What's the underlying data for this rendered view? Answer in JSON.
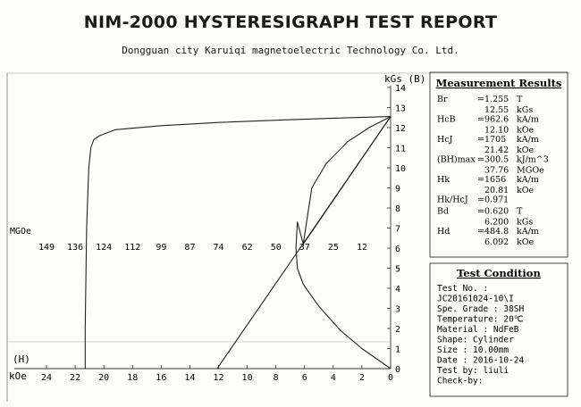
{
  "report": {
    "title": "NIM-2000 HYSTERESIGRAPH TEST REPORT",
    "company": "Dongguan city Karuiqi magnetoelectric Technology Co. Ltd."
  },
  "chart_data": {
    "type": "line",
    "y_axis": {
      "label": "kGs (B)",
      "min": 0,
      "max": 14,
      "ticks": [
        "0",
        "1",
        "2",
        "3",
        "4",
        "5",
        "6",
        "7",
        "8",
        "9",
        "10",
        "11",
        "12",
        "13",
        "14"
      ]
    },
    "x_axis": {
      "label": "kOe",
      "min": -24,
      "max": 0,
      "ticks": [
        "24",
        "22",
        "20",
        "18",
        "16",
        "14",
        "12",
        "10",
        "8",
        "6",
        "4",
        "2",
        "0"
      ]
    },
    "h_axis_label": "(H)",
    "energy_axis": {
      "label": "MGOe",
      "ticks": [
        "149",
        "136",
        "124",
        "112",
        "99",
        "87",
        "74",
        "62",
        "50",
        "37",
        "25",
        "12"
      ]
    },
    "series": [
      {
        "kind": "demagnetization-curve",
        "x": [
          0,
          -4,
          -8,
          -12,
          -16,
          -19.2,
          -20.3,
          -20.7,
          -20.9,
          -21.05,
          -21.2,
          -21.3,
          -21.3
        ],
        "y": [
          12.55,
          12.47,
          12.37,
          12.26,
          12.1,
          11.9,
          11.6,
          11.4,
          11.0,
          10.0,
          7.0,
          2.0,
          0
        ]
      },
      {
        "kind": "bh-product-curve",
        "x": [
          0,
          -1.5,
          -3,
          -4.5,
          -5.5,
          -6.09,
          -6.5,
          -6.6,
          -6.5,
          -6.09,
          -5,
          -3.5,
          -2,
          -0.8,
          0
        ],
        "y": [
          12.55,
          12.0,
          11.3,
          10.2,
          9.0,
          6.2,
          7.3,
          6.0,
          5.0,
          4.2,
          3.1,
          1.9,
          1.0,
          0.4,
          0
        ]
      },
      {
        "kind": "load-line",
        "x": [
          0,
          -12.1
        ],
        "y": [
          12.55,
          0
        ]
      },
      {
        "kind": "load-line-2",
        "x": [
          0,
          -6.09
        ],
        "y": [
          12.55,
          6.2
        ]
      }
    ]
  },
  "measurement": {
    "title": "Measurement Results",
    "rows": [
      {
        "name": "Br",
        "eq": "=",
        "v1": "1.255",
        "u1": "T",
        "v2": "12.55",
        "u2": "kGs"
      },
      {
        "name": "HcB",
        "eq": "=",
        "v1": "962.6",
        "u1": "kA/m",
        "v2": "12.10",
        "u2": "kOe"
      },
      {
        "name": "HcJ",
        "eq": "=",
        "v1": "1705",
        "u1": "kA/m",
        "v2": "21.42",
        "u2": "kOe"
      },
      {
        "name": "(BH)max",
        "eq": "=",
        "v1": "300.5",
        "u1": "kJ/m^3",
        "v2": "37.76",
        "u2": "MGOe"
      },
      {
        "name": "Hk",
        "eq": "=",
        "v1": "1656",
        "u1": "kA/m",
        "v2": "20.81",
        "u2": "kOe"
      },
      {
        "name": "Hk/HcJ",
        "eq": "=",
        "v1": "0.971",
        "u1": "",
        "v2": "",
        "u2": ""
      },
      {
        "name": "Bd",
        "eq": "=",
        "v1": "0.620",
        "u1": "T",
        "v2": "6.200",
        "u2": "kGs"
      },
      {
        "name": "Hd",
        "eq": "=",
        "v1": "484.8",
        "u1": "kA/m",
        "v2": "6.092",
        "u2": "kOe"
      }
    ]
  },
  "condition": {
    "title": "Test Condition",
    "lines": [
      "Test No.   :",
      "JC20161024-10\\I",
      "Spe. Grade : 38SH",
      "Temperature: 20℃",
      "Material   : NdFeB",
      "Shape: Cylinder",
      "Size : 10.00mm",
      "Date : 2016-10-24",
      "Test by: liuli",
      "Check-by:"
    ]
  }
}
